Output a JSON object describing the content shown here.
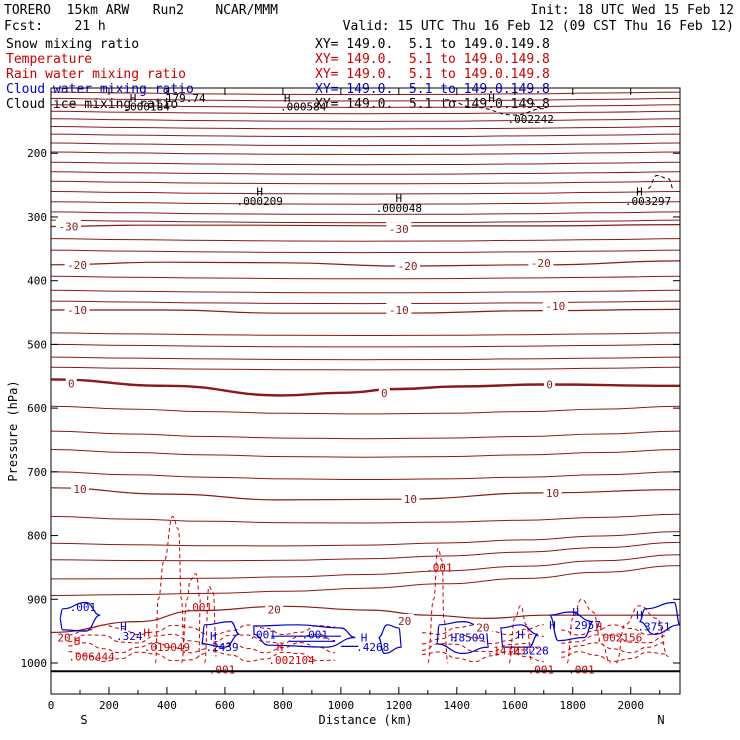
{
  "header": {
    "model": "TORERO  15km ARW   Run2    NCAR/MMM",
    "init": "Init: 18 UTC Wed 15 Feb 12",
    "fcst": "Fcst:    21 h",
    "valid": "Valid: 15 UTC Thu 16 Feb 12 (09 CST Thu 16 Feb 12)"
  },
  "legend": [
    {
      "field": "Snow mixing ratio",
      "range": "XY= 149.0.  5.1 to 149.0.149.8",
      "color": "#000000"
    },
    {
      "field": "Temperature",
      "range": "XY= 149.0.  5.1 to 149.0.149.8",
      "color": "#cc0000"
    },
    {
      "field": "Rain water mixing ratio",
      "range": "XY= 149.0.  5.1 to 149.0.149.8",
      "color": "#cc0000"
    },
    {
      "field": "Cloud water mixing ratio",
      "range": "XY= 149.0.  5.1 to 149.0.149.8",
      "color": "#0000cc"
    },
    {
      "field": "Cloud ice mixing ratio",
      "range": "XY= 149.0.  5.1 to 149.0.149.8",
      "color": "#000000"
    }
  ],
  "chart_data": {
    "type": "contour",
    "xlabel": "Distance (km)",
    "ylabel": "Pressure (hPa)",
    "xlim": [
      0,
      2170
    ],
    "ylim": [
      1050,
      100
    ],
    "x_ticks": [
      0,
      200,
      400,
      600,
      800,
      1000,
      1200,
      1400,
      1600,
      1800,
      2000
    ],
    "y_ticks": [
      200,
      300,
      400,
      500,
      600,
      700,
      800,
      900,
      1000
    ],
    "endpoints": {
      "left": "S",
      "right": "N"
    },
    "temperature_isotherms": [
      {
        "label": "-30",
        "points": [
          [
            0,
            315
          ],
          [
            300,
            313
          ],
          [
            700,
            313
          ],
          [
            1200,
            314
          ],
          [
            1700,
            314
          ],
          [
            2170,
            312
          ]
        ]
      },
      {
        "label": "-20",
        "points": [
          [
            0,
            375
          ],
          [
            400,
            371
          ],
          [
            800,
            372
          ],
          [
            1200,
            377
          ],
          [
            1700,
            375
          ],
          [
            2170,
            369
          ]
        ]
      },
      {
        "label": "-10",
        "points": [
          [
            0,
            446
          ],
          [
            400,
            446
          ],
          [
            800,
            451
          ],
          [
            1200,
            451
          ],
          [
            1700,
            447
          ],
          [
            2170,
            445
          ]
        ]
      },
      {
        "label": "0",
        "points": [
          [
            0,
            555
          ],
          [
            400,
            565
          ],
          [
            800,
            580
          ],
          [
            1000,
            576
          ],
          [
            1200,
            570
          ],
          [
            1400,
            566
          ],
          [
            1700,
            563
          ],
          [
            2170,
            565
          ]
        ]
      },
      {
        "label": "10",
        "points": [
          [
            0,
            725
          ],
          [
            400,
            735
          ],
          [
            800,
            744
          ],
          [
            1200,
            743
          ],
          [
            1700,
            733
          ],
          [
            2170,
            728
          ]
        ]
      },
      {
        "label": "20",
        "points": [
          [
            0,
            952
          ],
          [
            300,
            935
          ],
          [
            500,
            918
          ],
          [
            800,
            911
          ],
          [
            1100,
            917
          ],
          [
            1300,
            925
          ],
          [
            1500,
            930
          ],
          [
            1700,
            925
          ],
          [
            2170,
            925
          ]
        ]
      }
    ],
    "temperature_labels": [
      {
        "label": "-30",
        "x": 60,
        "p": 315
      },
      {
        "label": "-30",
        "x": 1200,
        "p": 319
      },
      {
        "label": "-20",
        "x": 90,
        "p": 375
      },
      {
        "label": "-20",
        "x": 1230,
        "p": 377
      },
      {
        "label": "-20",
        "x": 1690,
        "p": 372
      },
      {
        "label": "-10",
        "x": 90,
        "p": 446
      },
      {
        "label": "-10",
        "x": 1200,
        "p": 446
      },
      {
        "label": "-10",
        "x": 1740,
        "p": 440
      },
      {
        "label": "0",
        "x": 70,
        "p": 561
      },
      {
        "label": "0",
        "x": 1150,
        "p": 576
      },
      {
        "label": "0",
        "x": 1720,
        "p": 563
      },
      {
        "label": "10",
        "x": 100,
        "p": 727
      },
      {
        "label": "10",
        "x": 1240,
        "p": 743
      },
      {
        "label": "10",
        "x": 1730,
        "p": 733
      },
      {
        "label": "20",
        "x": 770,
        "p": 916
      },
      {
        "label": "20",
        "x": 1220,
        "p": 934
      },
      {
        "label": "20",
        "x": 1490,
        "p": 944
      }
    ],
    "labels": [
      {
        "text": "H",
        "x": 283,
        "p": 113,
        "color": "#000000"
      },
      {
        "text": ".000184",
        "x": 330,
        "p": 127,
        "color": "#000000"
      },
      {
        "text": "179.74",
        "x": 465,
        "p": 113,
        "color": "#000000"
      },
      {
        "text": "H",
        "x": 815,
        "p": 113,
        "color": "#000000"
      },
      {
        "text": ".000584",
        "x": 870,
        "p": 127,
        "color": "#000000"
      },
      {
        "text": "H",
        "x": 1520,
        "p": 113,
        "color": "#000000"
      },
      {
        "text": ".002242",
        "x": 1655,
        "p": 146,
        "color": "#000000"
      },
      {
        "text": "H",
        "x": 720,
        "p": 260,
        "color": "#000000"
      },
      {
        "text": ".000209",
        "x": 720,
        "p": 275,
        "color": "#000000"
      },
      {
        "text": "H",
        "x": 1200,
        "p": 270,
        "color": "#000000"
      },
      {
        "text": ".000048",
        "x": 1200,
        "p": 286,
        "color": "#000000"
      },
      {
        "text": "H",
        "x": 2030,
        "p": 260,
        "color": "#000000"
      },
      {
        "text": ".003297",
        "x": 2060,
        "p": 275,
        "color": "#000000"
      },
      {
        "text": ".001",
        "x": 1340,
        "p": 850,
        "color": "#cc0000"
      },
      {
        "text": ".001",
        "x": 510,
        "p": 912,
        "color": "#cc0000"
      },
      {
        "text": ".001",
        "x": 110,
        "p": 912,
        "color": "#0000cc"
      },
      {
        "text": "H",
        "x": 250,
        "p": 943,
        "color": "#0000cc"
      },
      {
        "text": ".324",
        "x": 270,
        "p": 958,
        "color": "#0000cc"
      },
      {
        "text": "H",
        "x": 330,
        "p": 952,
        "color": "#cc0000"
      },
      {
        "text": "20",
        "x": 45,
        "p": 960,
        "color": "#cc0000"
      },
      {
        "text": "H",
        "x": 90,
        "p": 965,
        "color": "#cc0000"
      },
      {
        "text": ".006444",
        "x": 140,
        "p": 990,
        "color": "#cc0000"
      },
      {
        "text": ".019049",
        "x": 400,
        "p": 975,
        "color": "#cc0000"
      },
      {
        "text": "H",
        "x": 560,
        "p": 958,
        "color": "#0000cc"
      },
      {
        "text": ".2439",
        "x": 590,
        "p": 975,
        "color": "#0000cc"
      },
      {
        "text": ".001",
        "x": 730,
        "p": 955,
        "color": "#0000cc"
      },
      {
        "text": ".001",
        "x": 910,
        "p": 955,
        "color": "#0000cc"
      },
      {
        "text": "H",
        "x": 790,
        "p": 975,
        "color": "#cc0000"
      },
      {
        "text": ".002104",
        "x": 830,
        "p": 995,
        "color": "#cc0000"
      },
      {
        "text": ".001",
        "x": 590,
        "p": 1010,
        "color": "#cc0000"
      },
      {
        "text": "H",
        "x": 1080,
        "p": 960,
        "color": "#0000cc"
      },
      {
        "text": ".4268",
        "x": 1110,
        "p": 975,
        "color": "#0000cc"
      },
      {
        "text": "H",
        "x": 1390,
        "p": 960,
        "color": "#0000cc"
      },
      {
        "text": ".8509",
        "x": 1440,
        "p": 960,
        "color": "#0000cc"
      },
      {
        "text": ".1410",
        "x": 1560,
        "p": 980,
        "color": "#cc0000"
      },
      {
        "text": "23",
        "x": 1615,
        "p": 980,
        "color": "#cc0000"
      },
      {
        "text": ".3228",
        "x": 1660,
        "p": 980,
        "color": "#0000cc"
      },
      {
        "text": "H",
        "x": 1620,
        "p": 955,
        "color": "#0000cc"
      },
      {
        "text": "H",
        "x": 1730,
        "p": 940,
        "color": "#0000cc"
      },
      {
        "text": ".001",
        "x": 1690,
        "p": 1010,
        "color": "#cc0000"
      },
      {
        "text": ".001",
        "x": 1830,
        "p": 1010,
        "color": "#cc0000"
      },
      {
        "text": "H",
        "x": 1810,
        "p": 920,
        "color": "#0000cc"
      },
      {
        "text": ".2957",
        "x": 1840,
        "p": 940,
        "color": "#0000cc"
      },
      {
        "text": "H",
        "x": 1890,
        "p": 943,
        "color": "#cc0000"
      },
      {
        "text": ".002156",
        "x": 1960,
        "p": 960,
        "color": "#cc0000"
      },
      {
        "text": "H",
        "x": 2030,
        "p": 925,
        "color": "#0000cc"
      },
      {
        "text": ".3751",
        "x": 2080,
        "p": 943,
        "color": "#0000cc"
      }
    ]
  }
}
